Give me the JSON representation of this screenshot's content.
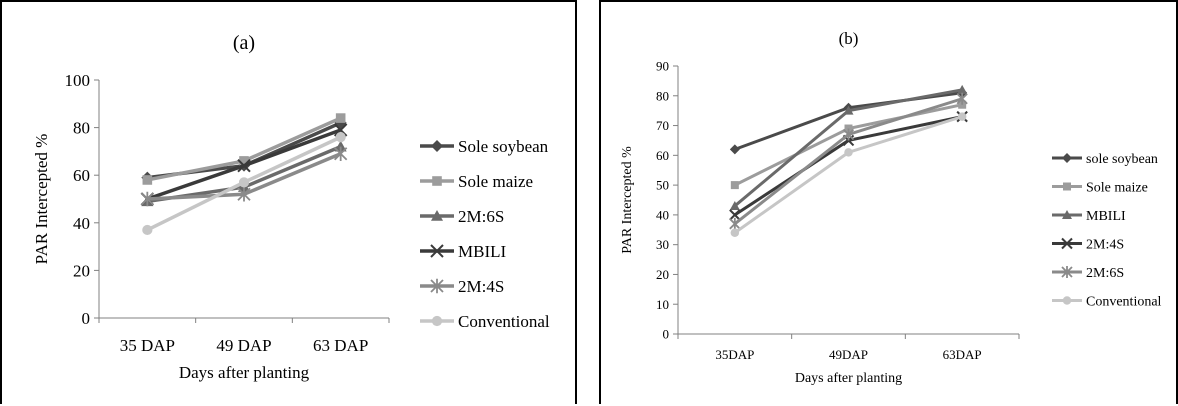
{
  "chart_data": [
    {
      "type": "line",
      "title": "(a)",
      "xlabel": "Days after planting",
      "ylabel": "PAR Intercepted %",
      "categories": [
        "35 DAP",
        "49 DAP",
        "63 DAP"
      ],
      "ylim": [
        0,
        100
      ],
      "yticks": [
        "0",
        "20",
        "40",
        "60",
        "80",
        "100"
      ],
      "legend_position": "right",
      "series": [
        {
          "name": "Sole soybean",
          "values": [
            59,
            64,
            82
          ],
          "color": "#4a4a4a",
          "marker": "diamond"
        },
        {
          "name": "Sole maize",
          "values": [
            58,
            66,
            84
          ],
          "color": "#9c9c9c",
          "marker": "square"
        },
        {
          "name": "2M:6S",
          "values": [
            49,
            55,
            72
          ],
          "color": "#6a6a6a",
          "marker": "triangle"
        },
        {
          "name": "MBILI",
          "values": [
            50,
            64,
            79
          ],
          "color": "#3a3a3a",
          "marker": "x"
        },
        {
          "name": "2M:4S",
          "values": [
            50,
            52,
            69
          ],
          "color": "#8a8a8a",
          "marker": "star"
        },
        {
          "name": "Conventional",
          "values": [
            37,
            57,
            76
          ],
          "color": "#c6c6c6",
          "marker": "circle"
        }
      ]
    },
    {
      "type": "line",
      "title": "(b)",
      "xlabel": "Days after planting",
      "ylabel": "PAR Intercepted %",
      "categories": [
        "35DAP",
        "49DAP",
        "63DAP"
      ],
      "ylim": [
        0,
        90
      ],
      "yticks": [
        "0",
        "10",
        "20",
        "30",
        "40",
        "50",
        "60",
        "70",
        "80",
        "90"
      ],
      "legend_position": "right",
      "series": [
        {
          "name": "sole soybean",
          "values": [
            62,
            76,
            81
          ],
          "color": "#4a4a4a",
          "marker": "diamond"
        },
        {
          "name": "Sole maize",
          "values": [
            50,
            69,
            77
          ],
          "color": "#9c9c9c",
          "marker": "square"
        },
        {
          "name": "MBILI",
          "values": [
            43,
            75,
            82
          ],
          "color": "#6a6a6a",
          "marker": "triangle"
        },
        {
          "name": "2M:4S",
          "values": [
            40,
            65,
            73
          ],
          "color": "#3a3a3a",
          "marker": "x"
        },
        {
          "name": "2M:6S",
          "values": [
            37,
            67,
            79
          ],
          "color": "#8a8a8a",
          "marker": "star"
        },
        {
          "name": "Conventional",
          "values": [
            34,
            61,
            73
          ],
          "color": "#c6c6c6",
          "marker": "circle"
        }
      ]
    }
  ]
}
